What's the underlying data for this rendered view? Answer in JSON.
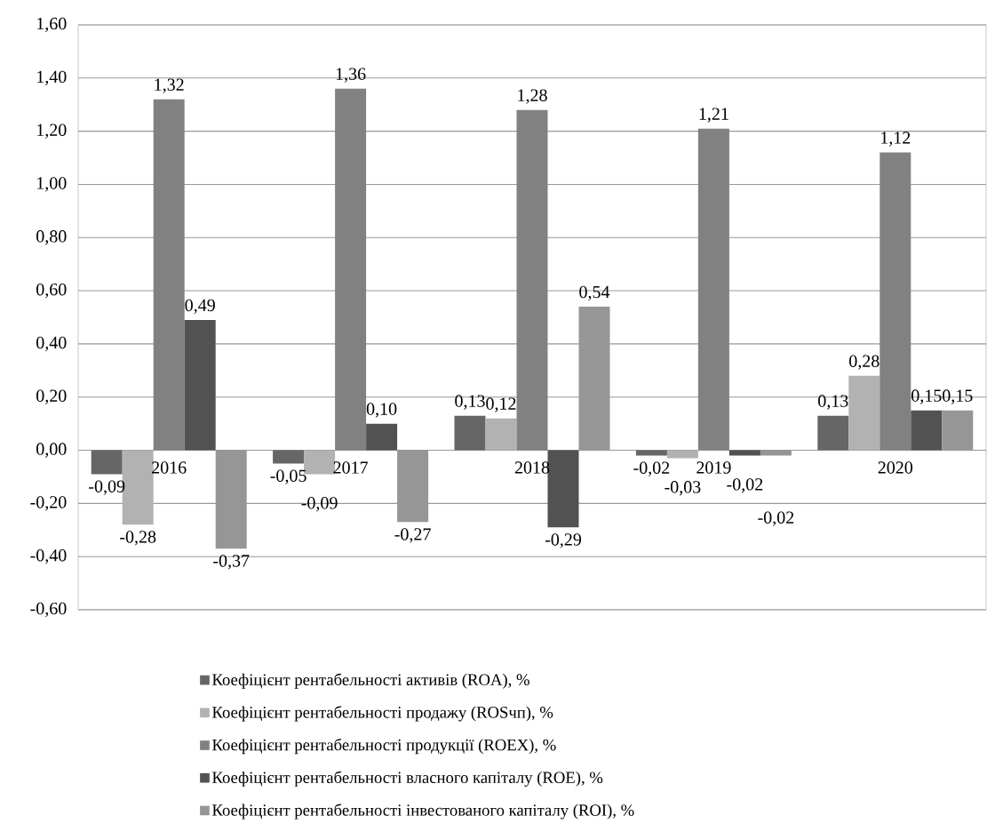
{
  "chart_data": {
    "type": "bar",
    "categories": [
      "2016",
      "2017",
      "2018",
      "2019",
      "2020"
    ],
    "series": [
      {
        "name": "Коефіцієнт рентабельності активів (ROA), %",
        "color": "#666666",
        "values": [
          -0.09,
          -0.05,
          0.13,
          -0.02,
          0.13
        ],
        "value_labels": [
          "-0,09",
          "-0,05",
          "0,13",
          "-0,02",
          "0,13"
        ]
      },
      {
        "name": "Коефіцієнт рентабельності продажу (ROSчп), %",
        "color": "#b2b2b2",
        "values": [
          -0.28,
          -0.09,
          0.12,
          -0.03,
          0.28
        ],
        "value_labels": [
          "-0,28",
          "-0,09",
          "0,12",
          "-0,03",
          "0,28"
        ]
      },
      {
        "name": "Коефіцієнт рентабельності продукції (ROEX), %",
        "color": "#818181",
        "values": [
          1.32,
          1.36,
          1.28,
          1.21,
          1.12
        ],
        "value_labels": [
          "1,32",
          "1,36",
          "1,28",
          "1,21",
          "1,12"
        ]
      },
      {
        "name": "Коефіцієнт рентабельності власного капіталу (ROE), %",
        "color": "#525252",
        "values": [
          0.49,
          0.1,
          -0.29,
          -0.02,
          0.15
        ],
        "value_labels": [
          "0,49",
          "0,10",
          "-0,29",
          "-0,02",
          "0,15"
        ]
      },
      {
        "name": "Коефіцієнт рентабельності інвестованого капіталу (ROI), %",
        "color": "#969696",
        "values": [
          -0.37,
          -0.27,
          0.54,
          -0.02,
          0.15
        ],
        "value_labels": [
          "-0,37",
          "-0,27",
          "0,54",
          "-0,02",
          "0,15"
        ]
      }
    ],
    "ylim": [
      -0.6,
      1.6
    ],
    "yticks": [
      {
        "value": -0.6,
        "label": "-0,60"
      },
      {
        "value": -0.4,
        "label": "-0,40"
      },
      {
        "value": -0.2,
        "label": "-0,20"
      },
      {
        "value": 0,
        "label": "0,00"
      },
      {
        "value": 0.2,
        "label": "0,20"
      },
      {
        "value": 0.4,
        "label": "0,40"
      },
      {
        "value": 0.6,
        "label": "0,60"
      },
      {
        "value": 0.8,
        "label": "0,80"
      },
      {
        "value": 1.0,
        "label": "1,00"
      },
      {
        "value": 1.2,
        "label": "1,20"
      },
      {
        "value": 1.4,
        "label": "1,40"
      },
      {
        "value": 1.6,
        "label": "1,60"
      }
    ],
    "grid": "y",
    "legend": "bottom"
  }
}
